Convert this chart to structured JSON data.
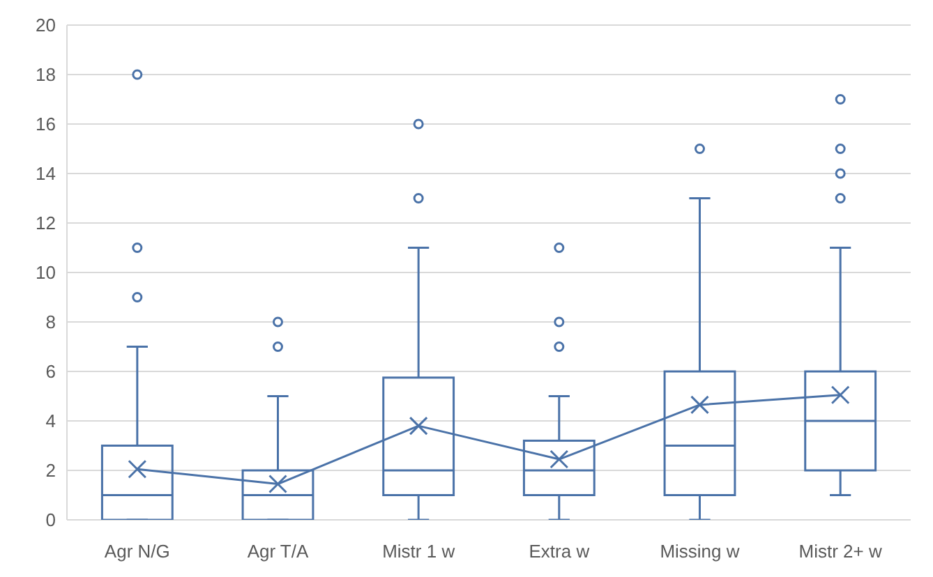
{
  "chart_data": {
    "type": "box",
    "categories": [
      "Agr N/G",
      "Agr T/A",
      "Mistr 1 w",
      "Extra w",
      "Missing w",
      "Mistr 2+ w"
    ],
    "series": [
      {
        "type": "box",
        "color": "#4a72a8",
        "boxes": [
          {
            "low": 0,
            "q1": 0,
            "median": 1,
            "q3": 3,
            "high": 7,
            "outliers": [
              9,
              11,
              18
            ]
          },
          {
            "low": 0,
            "q1": 0,
            "median": 1,
            "q3": 2,
            "high": 5,
            "outliers": [
              7,
              8
            ]
          },
          {
            "low": 0,
            "q1": 1,
            "median": 2,
            "q3": 5.75,
            "high": 11,
            "outliers": [
              13,
              16
            ]
          },
          {
            "low": 0,
            "q1": 1,
            "median": 2,
            "q3": 3.2,
            "high": 5,
            "outliers": [
              7,
              8,
              11
            ]
          },
          {
            "low": 0,
            "q1": 1,
            "median": 3,
            "q3": 6,
            "high": 13,
            "outliers": [
              15
            ]
          },
          {
            "low": 1,
            "q1": 2,
            "median": 4,
            "q3": 6,
            "high": 11,
            "outliers": [
              13,
              14,
              15,
              17
            ]
          }
        ]
      },
      {
        "type": "line",
        "color": "#4a72a8",
        "marker": "cross",
        "values": [
          2.05,
          1.45,
          3.8,
          2.45,
          4.65,
          5.05
        ]
      }
    ],
    "ylim": [
      0,
      20
    ],
    "yticks": [
      0,
      2,
      4,
      6,
      8,
      10,
      12,
      14,
      16,
      18,
      20
    ],
    "grid": "y"
  }
}
